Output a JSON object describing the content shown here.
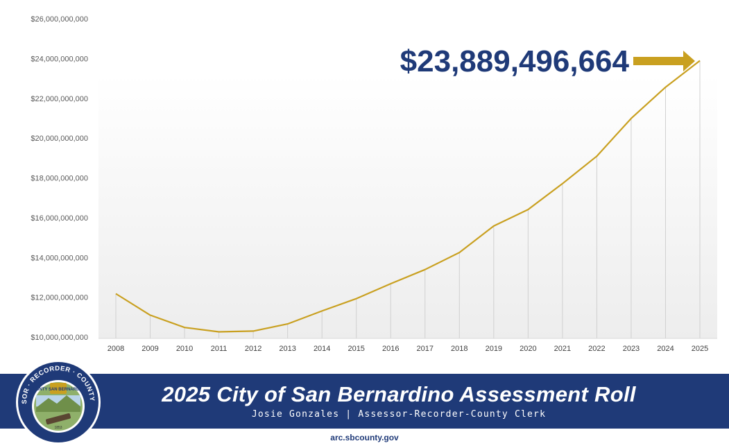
{
  "chart_data": {
    "type": "line",
    "categories": [
      "2008",
      "2009",
      "2010",
      "2011",
      "2012",
      "2013",
      "2014",
      "2015",
      "2016",
      "2017",
      "2018",
      "2019",
      "2020",
      "2021",
      "2022",
      "2023",
      "2024",
      "2025"
    ],
    "series": [
      {
        "values": [
          12180000000,
          11100000000,
          10480000000,
          10260000000,
          10300000000,
          10660000000,
          11310000000,
          11930000000,
          12680000000,
          13390000000,
          14250000000,
          15580000000,
          16410000000,
          17710000000,
          19090000000,
          20990000000,
          22560000000,
          23889496664
        ],
        "color": "#c9a020"
      }
    ],
    "y_ticks": [
      "$10,000,000,000",
      "$12,000,000,000",
      "$14,000,000,000",
      "$16,000,000,000",
      "$18,000,000,000",
      "$20,000,000,000",
      "$22,000,000,000",
      "$24,000,000,000",
      "$26,000,000,000"
    ],
    "ylim": [
      10000000000,
      26000000000
    ],
    "grid": "vertical drop lines",
    "callout": "$23,889,496,664",
    "callout_color": "#1f3a78",
    "arrow_color": "#c9a020"
  },
  "banner": {
    "title": "2025 City of San Bernardino Assessment Roll",
    "subtitle": "Josie Gonzales | Assessor-Recorder-County Clerk",
    "background": "#1f3a78"
  },
  "seal": {
    "text": "ASSESSOR · RECORDER · COUNTY CLERK",
    "inner_text": "COUNTY SAN BERNARDINO",
    "year": "1853"
  },
  "footer": {
    "website": "arc.sbcounty.gov"
  }
}
